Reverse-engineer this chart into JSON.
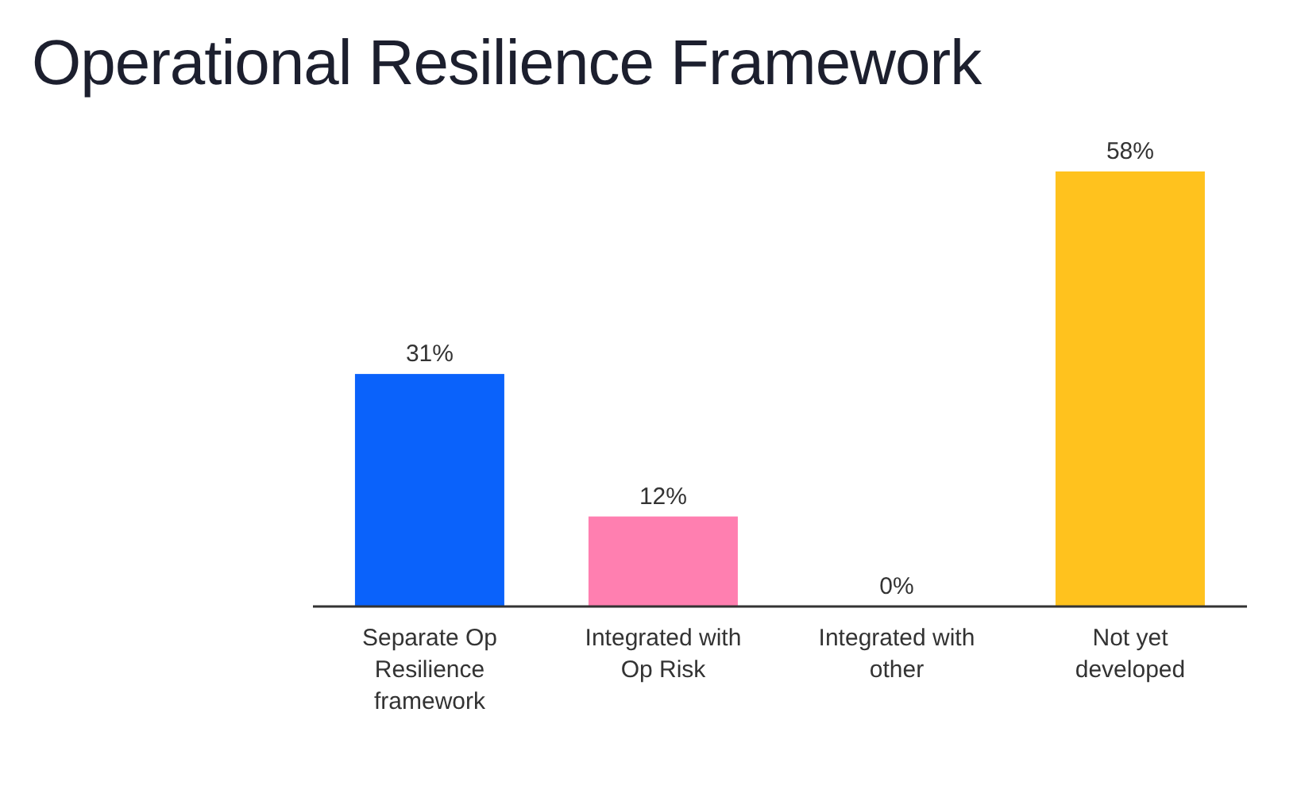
{
  "chart_data": {
    "type": "bar",
    "title": "Operational Resilience Framework",
    "categories": [
      "Separate Op Resilience framework",
      "Integrated with Op Risk",
      "Integrated with other",
      "Not yet developed"
    ],
    "values": [
      31,
      12,
      0,
      58
    ],
    "colors": [
      "#0a62fb",
      "#ff7fb0",
      "#9e9e9e",
      "#ffc21e"
    ],
    "value_labels": [
      "31%",
      "12%",
      "0%",
      "58%"
    ],
    "grid": false,
    "legend": false
  }
}
